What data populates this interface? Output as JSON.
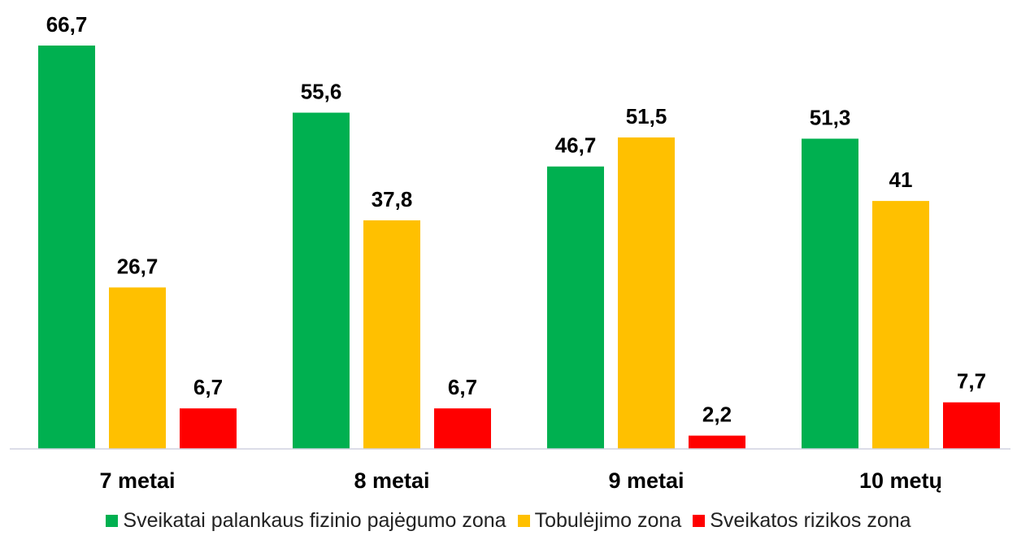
{
  "chart_data": {
    "type": "bar",
    "title": "",
    "xlabel": "",
    "ylabel": "",
    "categories": [
      "7 metai",
      "8 metai",
      "9 metai",
      "10 metų"
    ],
    "series": [
      {
        "name": "Sveikatai palankaus fizinio pajėgumo zona",
        "color": "#00b050",
        "values": [
          66.7,
          55.6,
          46.7,
          51.3
        ],
        "labels": [
          "66,7",
          "55,6",
          "46,7",
          "51,3"
        ]
      },
      {
        "name": "Tobulėjimo zona",
        "color": "#ffc000",
        "values": [
          26.7,
          37.8,
          51.5,
          41
        ],
        "labels": [
          "26,7",
          "37,8",
          "51,5",
          "41"
        ]
      },
      {
        "name": "Sveikatos rizikos zona",
        "color": "#ff0000",
        "values": [
          6.7,
          6.7,
          2.2,
          7.7
        ],
        "labels": [
          "6,7",
          "6,7",
          "2,2",
          "7,7"
        ]
      }
    ],
    "ylim": [
      0,
      66.7
    ],
    "grid": false,
    "legend_position": "bottom"
  }
}
